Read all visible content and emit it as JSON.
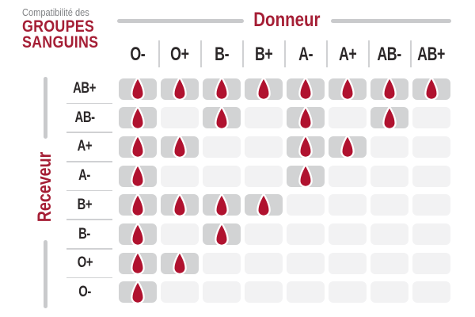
{
  "header": {
    "kicker": "Compatibilité des",
    "title_line1": "GROUPES",
    "title_line2": "SANGUINS"
  },
  "chart_data": {
    "type": "matrix",
    "title": "Compatibilité des groupes sanguins",
    "columns_axis": "Donneur",
    "rows_axis": "Receveur",
    "columns": [
      "O-",
      "O+",
      "B-",
      "B+",
      "A-",
      "A+",
      "AB-",
      "AB+"
    ],
    "rows": [
      "AB+",
      "AB-",
      "A+",
      "A-",
      "B+",
      "B-",
      "O+",
      "O-"
    ],
    "marker": "blood-drop = compatible",
    "compatible": [
      [
        1,
        1,
        1,
        1,
        1,
        1,
        1,
        1
      ],
      [
        1,
        0,
        1,
        0,
        1,
        0,
        1,
        0
      ],
      [
        1,
        1,
        0,
        0,
        1,
        1,
        0,
        0
      ],
      [
        1,
        0,
        0,
        0,
        1,
        0,
        0,
        0
      ],
      [
        1,
        1,
        1,
        1,
        0,
        0,
        0,
        0
      ],
      [
        1,
        0,
        1,
        0,
        0,
        0,
        0,
        0
      ],
      [
        1,
        1,
        0,
        0,
        0,
        0,
        0,
        0
      ],
      [
        1,
        0,
        0,
        0,
        0,
        0,
        0,
        0
      ]
    ]
  },
  "colors": {
    "accent_red": "#a51e35",
    "drop_red": "#b0122f",
    "cell_filled": "#d2d3d4",
    "cell_empty": "#f2f2f3",
    "text_dark": "#2b2728",
    "text_gray": "#808285",
    "rail_gray": "#c9cacc",
    "divider_gray": "#d0d1d3"
  }
}
